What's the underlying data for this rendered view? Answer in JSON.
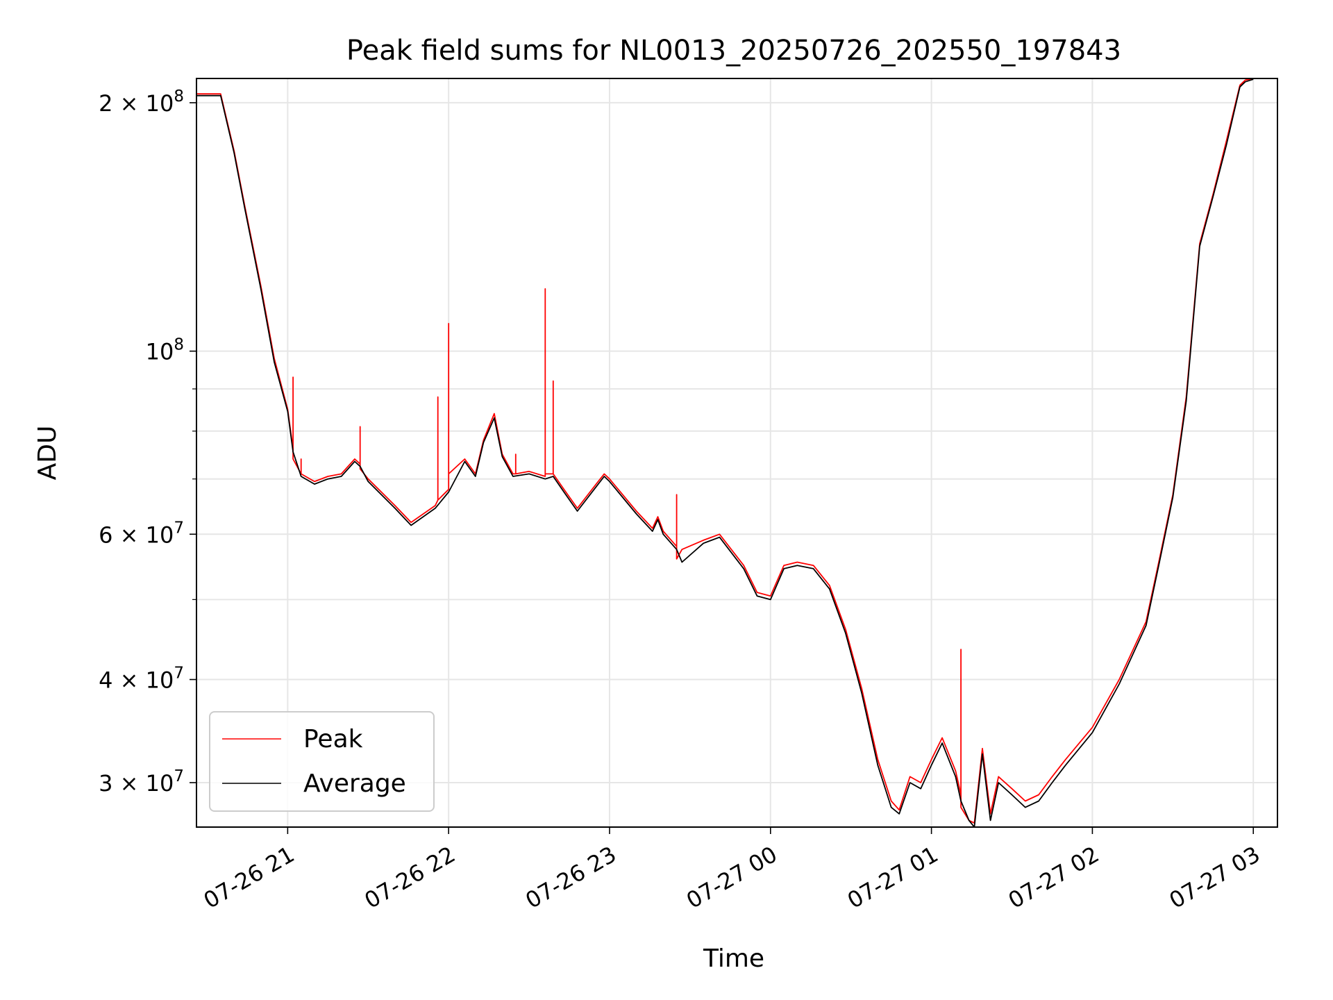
{
  "chart_data": {
    "type": "line",
    "title": "Peak field sums for NL0013_20250726_202550_197843",
    "xlabel": "Time",
    "ylabel": "ADU",
    "yscale": "log",
    "xlim": [
      "2025-07-26 20:26",
      "2025-07-27 03:09"
    ],
    "ylim": [
      26500000,
      214000000
    ],
    "grid": true,
    "legend_position": "lower-left",
    "x_ticks": [
      {
        "t": "2025-07-26 21:00",
        "label": "07-26 21"
      },
      {
        "t": "2025-07-26 22:00",
        "label": "07-26 22"
      },
      {
        "t": "2025-07-26 23:00",
        "label": "07-26 23"
      },
      {
        "t": "2025-07-27 00:00",
        "label": "07-27 00"
      },
      {
        "t": "2025-07-27 01:00",
        "label": "07-27 01"
      },
      {
        "t": "2025-07-27 02:00",
        "label": "07-27 02"
      },
      {
        "t": "2025-07-27 03:00",
        "label": "07-27 03"
      }
    ],
    "y_ticks": [
      {
        "value": 200000000,
        "mant": "2 × 10",
        "exp": "8"
      },
      {
        "value": 100000000,
        "mant": "10",
        "exp": "8"
      },
      {
        "value": 60000000,
        "mant": "6 × 10",
        "exp": "7"
      },
      {
        "value": 40000000,
        "mant": "4 × 10",
        "exp": "7"
      },
      {
        "value": 30000000,
        "mant": "3 × 10",
        "exp": "7"
      }
    ],
    "y_minor_ticks": [
      90000000,
      80000000,
      70000000,
      50000000
    ],
    "series": [
      {
        "name": "Peak",
        "color": "#ff0000",
        "x": [
          "2025-07-26 20:26",
          "2025-07-26 20:29",
          "2025-07-26 20:31",
          "2025-07-26 20:35",
          "2025-07-26 20:40",
          "2025-07-26 20:44",
          "2025-07-26 20:50",
          "2025-07-26 20:55",
          "2025-07-26 21:00",
          "2025-07-26 21:02",
          "2025-07-26 21:02",
          "2025-07-26 21:02",
          "2025-07-26 21:05",
          "2025-07-26 21:05",
          "2025-07-26 21:05",
          "2025-07-26 21:10",
          "2025-07-26 21:15",
          "2025-07-26 21:20",
          "2025-07-26 21:25",
          "2025-07-26 21:27",
          "2025-07-26 21:27",
          "2025-07-26 21:27",
          "2025-07-26 21:30",
          "2025-07-26 21:40",
          "2025-07-26 21:46",
          "2025-07-26 21:55",
          "2025-07-26 21:56",
          "2025-07-26 21:56",
          "2025-07-26 21:56",
          "2025-07-26 22:00",
          "2025-07-26 22:00",
          "2025-07-26 22:00",
          "2025-07-26 22:06",
          "2025-07-26 22:10",
          "2025-07-26 22:13",
          "2025-07-26 22:17",
          "2025-07-26 22:20",
          "2025-07-26 22:24",
          "2025-07-26 22:25",
          "2025-07-26 22:25",
          "2025-07-26 22:25",
          "2025-07-26 22:30",
          "2025-07-26 22:36",
          "2025-07-26 22:36",
          "2025-07-26 22:36",
          "2025-07-26 22:39",
          "2025-07-26 22:39",
          "2025-07-26 22:39",
          "2025-07-26 22:43",
          "2025-07-26 22:48",
          "2025-07-26 22:55",
          "2025-07-26 22:58",
          "2025-07-26 23:00",
          "2025-07-26 23:10",
          "2025-07-26 23:16",
          "2025-07-26 23:18",
          "2025-07-26 23:20",
          "2025-07-26 23:25",
          "2025-07-26 23:25",
          "2025-07-26 23:25",
          "2025-07-26 23:27",
          "2025-07-26 23:35",
          "2025-07-26 23:41",
          "2025-07-26 23:50",
          "2025-07-26 23:55",
          "2025-07-27 00:00",
          "2025-07-27 00:05",
          "2025-07-27 00:10",
          "2025-07-27 00:16",
          "2025-07-27 00:22",
          "2025-07-27 00:28",
          "2025-07-27 00:34",
          "2025-07-27 00:40",
          "2025-07-27 00:45",
          "2025-07-27 00:48",
          "2025-07-27 00:52",
          "2025-07-27 00:56",
          "2025-07-27 01:00",
          "2025-07-27 01:04",
          "2025-07-27 01:09",
          "2025-07-27 01:11",
          "2025-07-27 01:11",
          "2025-07-27 01:11",
          "2025-07-27 01:14",
          "2025-07-27 01:16",
          "2025-07-27 01:19",
          "2025-07-27 01:22",
          "2025-07-27 01:25",
          "2025-07-27 01:30",
          "2025-07-27 01:35",
          "2025-07-27 01:40",
          "2025-07-27 01:45",
          "2025-07-27 01:50",
          "2025-07-27 02:00",
          "2025-07-27 02:10",
          "2025-07-27 02:20",
          "2025-07-27 02:25",
          "2025-07-27 02:30",
          "2025-07-27 02:35",
          "2025-07-27 02:40",
          "2025-07-27 02:45",
          "2025-07-27 02:50",
          "2025-07-27 02:55",
          "2025-07-27 02:57",
          "2025-07-27 03:00"
        ],
        "y": [
          205000000,
          205000000,
          205000000,
          205000000,
          175000000,
          150000000,
          120000000,
          98000000,
          85000000,
          76000000,
          93000000,
          74000000,
          71000000,
          74000000,
          71000000,
          69500000,
          70500000,
          71000000,
          74000000,
          73000000,
          81000000,
          72000000,
          70000000,
          65000000,
          62000000,
          65000000,
          66000000,
          88000000,
          66000000,
          68000000,
          108000000,
          71000000,
          74000000,
          71000000,
          78000000,
          84000000,
          75000000,
          71000000,
          71000000,
          75000000,
          71000000,
          71500000,
          70500000,
          119000000,
          71000000,
          71000000,
          92000000,
          71000000,
          68000000,
          64500000,
          69000000,
          71000000,
          70000000,
          64000000,
          61000000,
          63000000,
          60500000,
          58000000,
          67000000,
          56000000,
          57500000,
          59000000,
          60000000,
          55000000,
          51000000,
          50500000,
          55000000,
          55500000,
          55000000,
          52000000,
          46000000,
          39000000,
          32000000,
          28500000,
          27800000,
          30500000,
          30000000,
          32000000,
          34000000,
          31000000,
          29000000,
          43500000,
          28000000,
          27000000,
          26800000,
          33000000,
          27500000,
          30500000,
          29500000,
          28500000,
          29000000,
          30500000,
          32000000,
          35000000,
          40000000,
          47000000,
          56000000,
          67000000,
          88000000,
          135000000,
          155000000,
          180000000,
          210000000,
          213000000,
          214000000
        ]
      },
      {
        "name": "Average",
        "color": "#000000",
        "x": [
          "2025-07-26 20:26",
          "2025-07-26 20:29",
          "2025-07-26 20:31",
          "2025-07-26 20:35",
          "2025-07-26 20:40",
          "2025-07-26 20:44",
          "2025-07-26 20:50",
          "2025-07-26 20:55",
          "2025-07-26 21:00",
          "2025-07-26 21:02",
          "2025-07-26 21:05",
          "2025-07-26 21:10",
          "2025-07-26 21:15",
          "2025-07-26 21:20",
          "2025-07-26 21:25",
          "2025-07-26 21:27",
          "2025-07-26 21:30",
          "2025-07-26 21:40",
          "2025-07-26 21:46",
          "2025-07-26 21:55",
          "2025-07-26 22:00",
          "2025-07-26 22:06",
          "2025-07-26 22:10",
          "2025-07-26 22:13",
          "2025-07-26 22:17",
          "2025-07-26 22:20",
          "2025-07-26 22:24",
          "2025-07-26 22:30",
          "2025-07-26 22:36",
          "2025-07-26 22:39",
          "2025-07-26 22:43",
          "2025-07-26 22:48",
          "2025-07-26 22:55",
          "2025-07-26 22:58",
          "2025-07-26 23:00",
          "2025-07-26 23:10",
          "2025-07-26 23:16",
          "2025-07-26 23:18",
          "2025-07-26 23:20",
          "2025-07-26 23:25",
          "2025-07-26 23:27",
          "2025-07-26 23:35",
          "2025-07-26 23:41",
          "2025-07-26 23:50",
          "2025-07-26 23:55",
          "2025-07-27 00:00",
          "2025-07-27 00:05",
          "2025-07-27 00:10",
          "2025-07-27 00:16",
          "2025-07-27 00:22",
          "2025-07-27 00:28",
          "2025-07-27 00:34",
          "2025-07-27 00:40",
          "2025-07-27 00:45",
          "2025-07-27 00:48",
          "2025-07-27 00:52",
          "2025-07-27 00:56",
          "2025-07-27 01:00",
          "2025-07-27 01:04",
          "2025-07-27 01:09",
          "2025-07-27 01:11",
          "2025-07-27 01:14",
          "2025-07-27 01:16",
          "2025-07-27 01:19",
          "2025-07-27 01:22",
          "2025-07-27 01:25",
          "2025-07-27 01:30",
          "2025-07-27 01:35",
          "2025-07-27 01:40",
          "2025-07-27 01:45",
          "2025-07-27 01:50",
          "2025-07-27 02:00",
          "2025-07-27 02:10",
          "2025-07-27 02:20",
          "2025-07-27 02:25",
          "2025-07-27 02:30",
          "2025-07-27 02:35",
          "2025-07-27 02:40",
          "2025-07-27 02:45",
          "2025-07-27 02:50",
          "2025-07-27 02:55",
          "2025-07-27 02:57",
          "2025-07-27 03:00"
        ],
        "y": [
          204000000,
          204000000,
          204000000,
          204000000,
          174000000,
          149000000,
          119000000,
          97000000,
          84500000,
          75500000,
          70500000,
          69000000,
          70000000,
          70500000,
          73500000,
          72500000,
          69500000,
          64500000,
          61500000,
          64500000,
          67500000,
          73500000,
          70500000,
          77500000,
          83000000,
          74500000,
          70500000,
          71000000,
          70000000,
          70500000,
          67500000,
          64000000,
          68500000,
          70500000,
          69500000,
          63500000,
          60500000,
          62500000,
          60000000,
          57500000,
          55500000,
          58500000,
          59500000,
          54500000,
          50500000,
          50000000,
          54500000,
          55000000,
          54500000,
          51500000,
          45500000,
          38500000,
          31500000,
          28000000,
          27500000,
          30000000,
          29500000,
          31500000,
          33500000,
          30500000,
          28500000,
          27000000,
          26500000,
          32500000,
          27000000,
          30000000,
          29000000,
          28000000,
          28500000,
          30000000,
          31500000,
          34500000,
          39500000,
          46500000,
          55500000,
          66500000,
          87000000,
          134000000,
          154000000,
          178000000,
          209000000,
          212000000,
          213500000
        ]
      }
    ]
  }
}
